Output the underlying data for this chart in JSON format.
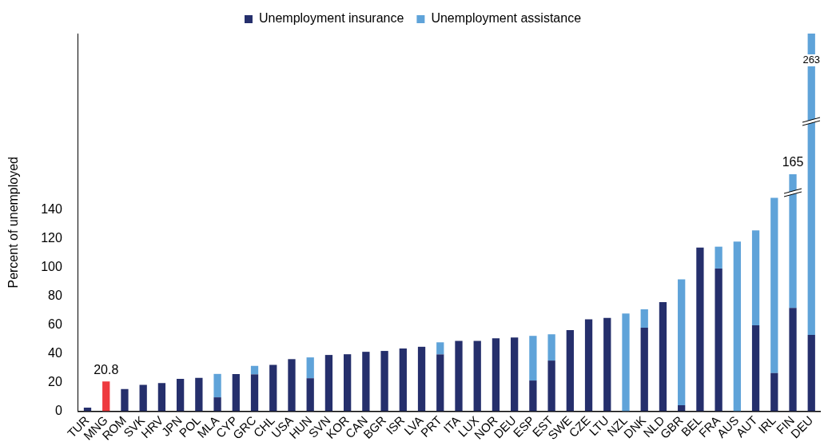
{
  "chart_data": {
    "type": "bar",
    "stacked": true,
    "ylabel": "Percent of unemployed",
    "categories": [
      "TUR",
      "MNG",
      "ROM",
      "SVK",
      "HRV",
      "JPN",
      "POL",
      "MLA",
      "CYP",
      "GRC",
      "CHL",
      "USA",
      "HUN",
      "SVN",
      "KOR",
      "CAN",
      "BGR",
      "ISR",
      "LVA",
      "PRT",
      "ITA",
      "LUX",
      "NOR",
      "DEU",
      "ESP",
      "EST",
      "SWE",
      "CZE",
      "LTU",
      "NZL",
      "DNK",
      "NLD",
      "GBR",
      "BEL",
      "FRA",
      "AUS",
      "AUT",
      "IRL",
      "FIN",
      "DEU"
    ],
    "series": [
      {
        "name": "Unemployment insurance",
        "color": "#252f6c",
        "colors": [
          "#252f6c",
          "#ee3a3f",
          "#252f6c",
          "#252f6c",
          "#252f6c",
          "#252f6c",
          "#252f6c",
          "#252f6c",
          "#252f6c",
          "#252f6c",
          "#252f6c",
          "#252f6c",
          "#252f6c",
          "#252f6c",
          "#252f6c",
          "#252f6c",
          "#252f6c",
          "#252f6c",
          "#252f6c",
          "#252f6c",
          "#252f6c",
          "#252f6c",
          "#252f6c",
          "#252f6c",
          "#252f6c",
          "#252f6c",
          "#252f6c",
          "#252f6c",
          "#252f6c",
          "#252f6c",
          "#252f6c",
          "#252f6c",
          "#252f6c",
          "#252f6c",
          "#252f6c",
          "#252f6c",
          "#252f6c",
          "#252f6c",
          "#252f6c",
          "#252f6c"
        ],
        "values": [
          2.5,
          20.8,
          15.5,
          18.4,
          19.7,
          22.5,
          23.2,
          9.7,
          25.9,
          25.7,
          32.3,
          36.3,
          23.0,
          39.2,
          39.7,
          41.4,
          42.0,
          43.7,
          44.9,
          39.6,
          49.0,
          49.0,
          50.8,
          51.4,
          21.4,
          35.3,
          56.5,
          64.0,
          65.0,
          0,
          58.2,
          76.0,
          4.2,
          114.0,
          99.4,
          0,
          59.9,
          26.6,
          71.9,
          53.1
        ]
      },
      {
        "name": "Unemployment assistance",
        "color": "#5fa3d9",
        "values": [
          null,
          null,
          null,
          null,
          null,
          null,
          null,
          16.3,
          null,
          5.9,
          null,
          null,
          14.5,
          null,
          null,
          null,
          null,
          null,
          null,
          8.4,
          null,
          null,
          null,
          null,
          31.1,
          18.3,
          null,
          null,
          null,
          68.1,
          12.8,
          null,
          87.6,
          null,
          15.2,
          118.2,
          66.1,
          122.0,
          93.1,
          209.9
        ]
      }
    ],
    "totals": [
      null,
      "20.8",
      null,
      null,
      null,
      null,
      null,
      null,
      null,
      null,
      null,
      null,
      null,
      null,
      null,
      null,
      null,
      null,
      null,
      null,
      null,
      null,
      null,
      null,
      null,
      null,
      null,
      null,
      null,
      null,
      null,
      null,
      null,
      null,
      null,
      null,
      null,
      null,
      "165",
      "263"
    ],
    "ylim": [
      0,
      263
    ],
    "yticks": [
      0,
      20,
      40,
      60,
      80,
      100,
      120,
      140
    ],
    "grid": false,
    "legend": "top"
  }
}
